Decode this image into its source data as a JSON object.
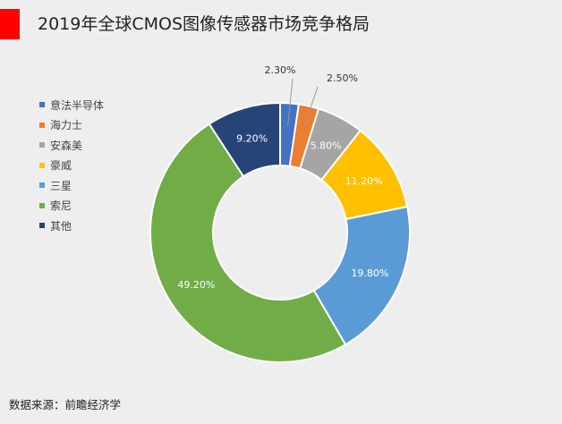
{
  "header": {
    "title": "2019年全球CMOS图像传感器市场竞争格局",
    "accent_color": "#ff0000"
  },
  "source": "数据来源：前瞻经济学",
  "chart_data": {
    "type": "pie",
    "donut": true,
    "title": "2019年全球CMOS图像传感器市场竞争格局",
    "categories": [
      "意法半导体",
      "海力士",
      "安森美",
      "豪威",
      "三星",
      "索尼",
      "其他"
    ],
    "values": [
      2.3,
      2.5,
      5.8,
      11.2,
      19.8,
      49.2,
      9.2
    ],
    "labels": [
      "2.30%",
      "2.50%",
      "5.80%",
      "11.20%",
      "19.80%",
      "49.20%",
      "9.20%"
    ],
    "colors": [
      "#4472c4",
      "#ed7d31",
      "#a5a5a5",
      "#ffc000",
      "#5b9bd5",
      "#70ad47",
      "#264478"
    ],
    "legend_position": "left"
  }
}
